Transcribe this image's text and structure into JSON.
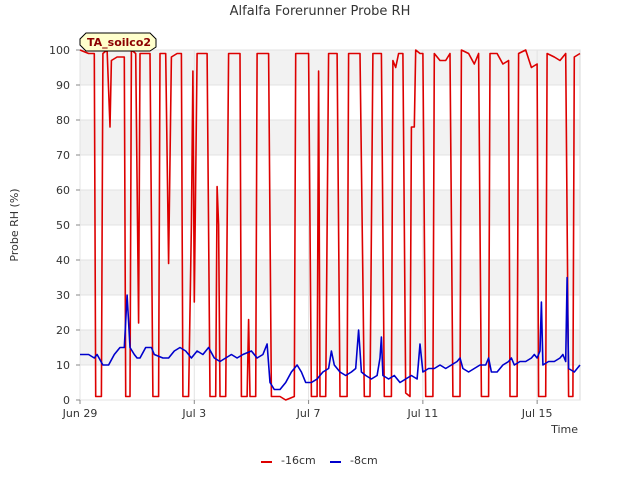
{
  "chart_data": {
    "type": "line",
    "title": "Alfalfa Forerunner Probe RH",
    "xlabel": "Time",
    "ylabel": "Probe RH (%)",
    "site_tag": "TA_soilco2",
    "ylim": [
      0,
      100
    ],
    "xlim": [
      0,
      17.5
    ],
    "y_ticks": [
      0,
      10,
      20,
      30,
      40,
      50,
      60,
      70,
      80,
      90,
      100
    ],
    "x_ticks": [
      {
        "label": "Jun 29",
        "day": 0
      },
      {
        "label": "Jul 3",
        "day": 4
      },
      {
        "label": "Jul 7",
        "day": 8
      },
      {
        "label": "Jul 11",
        "day": 12
      },
      {
        "label": "Jul 15",
        "day": 16
      }
    ],
    "series": [
      {
        "name": "-16cm",
        "color": "#dd0000",
        "points": [
          [
            0,
            100
          ],
          [
            0.3,
            99
          ],
          [
            0.5,
            99
          ],
          [
            0.55,
            1
          ],
          [
            0.75,
            1
          ],
          [
            0.8,
            99
          ],
          [
            0.95,
            100
          ],
          [
            1.05,
            78
          ],
          [
            1.1,
            97
          ],
          [
            1.3,
            98
          ],
          [
            1.55,
            98
          ],
          [
            1.6,
            1
          ],
          [
            1.75,
            1
          ],
          [
            1.8,
            100
          ],
          [
            1.95,
            99
          ],
          [
            2.05,
            22
          ],
          [
            2.1,
            99
          ],
          [
            2.3,
            99
          ],
          [
            2.45,
            99
          ],
          [
            2.55,
            1
          ],
          [
            2.75,
            1
          ],
          [
            2.8,
            99
          ],
          [
            3.0,
            99
          ],
          [
            3.1,
            39
          ],
          [
            3.2,
            98
          ],
          [
            3.4,
            99
          ],
          [
            3.55,
            99
          ],
          [
            3.6,
            1
          ],
          [
            3.8,
            1
          ],
          [
            3.9,
            50
          ],
          [
            3.95,
            94
          ],
          [
            4.0,
            28
          ],
          [
            4.1,
            99
          ],
          [
            4.3,
            99
          ],
          [
            4.45,
            99
          ],
          [
            4.55,
            1
          ],
          [
            4.75,
            1
          ],
          [
            4.8,
            61
          ],
          [
            4.85,
            50
          ],
          [
            4.9,
            1
          ],
          [
            5.1,
            1
          ],
          [
            5.2,
            99
          ],
          [
            5.4,
            99
          ],
          [
            5.6,
            99
          ],
          [
            5.65,
            1
          ],
          [
            5.85,
            1
          ],
          [
            5.9,
            23
          ],
          [
            5.95,
            1
          ],
          [
            6.15,
            1
          ],
          [
            6.2,
            99
          ],
          [
            6.4,
            99
          ],
          [
            6.6,
            99
          ],
          [
            6.7,
            1
          ],
          [
            7.0,
            1
          ],
          [
            7.2,
            0
          ],
          [
            7.5,
            1
          ],
          [
            7.55,
            99
          ],
          [
            7.8,
            99
          ],
          [
            8.0,
            99
          ],
          [
            8.1,
            1
          ],
          [
            8.3,
            1
          ],
          [
            8.35,
            94
          ],
          [
            8.4,
            1
          ],
          [
            8.6,
            1
          ],
          [
            8.7,
            99
          ],
          [
            8.9,
            99
          ],
          [
            9.0,
            99
          ],
          [
            9.1,
            1
          ],
          [
            9.35,
            1
          ],
          [
            9.4,
            99
          ],
          [
            9.6,
            99
          ],
          [
            9.8,
            99
          ],
          [
            9.9,
            34
          ],
          [
            9.95,
            1
          ],
          [
            10.15,
            1
          ],
          [
            10.25,
            99
          ],
          [
            10.4,
            99
          ],
          [
            10.55,
            99
          ],
          [
            10.65,
            1
          ],
          [
            10.9,
            1
          ],
          [
            10.95,
            97
          ],
          [
            11.05,
            95
          ],
          [
            11.15,
            99
          ],
          [
            11.3,
            99
          ],
          [
            11.4,
            2
          ],
          [
            11.55,
            1
          ],
          [
            11.6,
            78
          ],
          [
            11.7,
            78
          ],
          [
            11.75,
            100
          ],
          [
            11.9,
            99
          ],
          [
            12.0,
            99
          ],
          [
            12.1,
            1
          ],
          [
            12.35,
            1
          ],
          [
            12.4,
            99
          ],
          [
            12.6,
            97
          ],
          [
            12.8,
            97
          ],
          [
            12.95,
            99
          ],
          [
            13.05,
            1
          ],
          [
            13.3,
            1
          ],
          [
            13.35,
            100
          ],
          [
            13.6,
            99
          ],
          [
            13.8,
            96
          ],
          [
            13.95,
            99
          ],
          [
            14.05,
            1
          ],
          [
            14.3,
            1
          ],
          [
            14.35,
            99
          ],
          [
            14.6,
            99
          ],
          [
            14.8,
            96
          ],
          [
            15.0,
            97
          ],
          [
            15.05,
            1
          ],
          [
            15.3,
            1
          ],
          [
            15.35,
            99
          ],
          [
            15.6,
            100
          ],
          [
            15.8,
            95
          ],
          [
            16.0,
            96
          ],
          [
            16.05,
            1
          ],
          [
            16.3,
            1
          ],
          [
            16.35,
            99
          ],
          [
            16.6,
            98
          ],
          [
            16.8,
            97
          ],
          [
            17.0,
            99
          ],
          [
            17.1,
            1
          ],
          [
            17.25,
            1
          ],
          [
            17.3,
            98
          ],
          [
            17.5,
            99
          ]
        ]
      },
      {
        "name": "-8cm",
        "color": "#0000cc",
        "points": [
          [
            0,
            13
          ],
          [
            0.3,
            13
          ],
          [
            0.5,
            12
          ],
          [
            0.6,
            13
          ],
          [
            0.8,
            10
          ],
          [
            1.0,
            10
          ],
          [
            1.2,
            13
          ],
          [
            1.4,
            15
          ],
          [
            1.55,
            15
          ],
          [
            1.65,
            30
          ],
          [
            1.75,
            15
          ],
          [
            1.9,
            13
          ],
          [
            2.0,
            12
          ],
          [
            2.1,
            12
          ],
          [
            2.3,
            15
          ],
          [
            2.5,
            15
          ],
          [
            2.6,
            13
          ],
          [
            2.9,
            12
          ],
          [
            3.1,
            12
          ],
          [
            3.3,
            14
          ],
          [
            3.5,
            15
          ],
          [
            3.7,
            14
          ],
          [
            3.9,
            12
          ],
          [
            4.1,
            14
          ],
          [
            4.3,
            13
          ],
          [
            4.5,
            15
          ],
          [
            4.7,
            12
          ],
          [
            4.9,
            11
          ],
          [
            5.1,
            12
          ],
          [
            5.3,
            13
          ],
          [
            5.5,
            12
          ],
          [
            5.7,
            13
          ],
          [
            6.0,
            14
          ],
          [
            6.2,
            12
          ],
          [
            6.4,
            13
          ],
          [
            6.55,
            16
          ],
          [
            6.65,
            5
          ],
          [
            6.8,
            3
          ],
          [
            7.0,
            3
          ],
          [
            7.2,
            5
          ],
          [
            7.4,
            8
          ],
          [
            7.6,
            10
          ],
          [
            7.75,
            8
          ],
          [
            7.9,
            5
          ],
          [
            8.1,
            5
          ],
          [
            8.3,
            6
          ],
          [
            8.5,
            8
          ],
          [
            8.7,
            9
          ],
          [
            8.8,
            14
          ],
          [
            8.9,
            10
          ],
          [
            9.1,
            8
          ],
          [
            9.3,
            7
          ],
          [
            9.5,
            8
          ],
          [
            9.65,
            9
          ],
          [
            9.75,
            20
          ],
          [
            9.85,
            8
          ],
          [
            10.0,
            7
          ],
          [
            10.2,
            6
          ],
          [
            10.4,
            7
          ],
          [
            10.5,
            12
          ],
          [
            10.55,
            18
          ],
          [
            10.6,
            7
          ],
          [
            10.8,
            6
          ],
          [
            11.0,
            7
          ],
          [
            11.2,
            5
          ],
          [
            11.4,
            6
          ],
          [
            11.6,
            7
          ],
          [
            11.8,
            6
          ],
          [
            11.9,
            16
          ],
          [
            12.0,
            8
          ],
          [
            12.2,
            9
          ],
          [
            12.4,
            9
          ],
          [
            12.6,
            10
          ],
          [
            12.8,
            9
          ],
          [
            13.0,
            10
          ],
          [
            13.2,
            11
          ],
          [
            13.3,
            12
          ],
          [
            13.4,
            9
          ],
          [
            13.6,
            8
          ],
          [
            13.8,
            9
          ],
          [
            14.0,
            10
          ],
          [
            14.2,
            10
          ],
          [
            14.3,
            12
          ],
          [
            14.4,
            8
          ],
          [
            14.6,
            8
          ],
          [
            14.8,
            10
          ],
          [
            15.0,
            11
          ],
          [
            15.1,
            12
          ],
          [
            15.2,
            10
          ],
          [
            15.4,
            11
          ],
          [
            15.6,
            11
          ],
          [
            15.8,
            12
          ],
          [
            15.9,
            13
          ],
          [
            16.0,
            12
          ],
          [
            16.1,
            14
          ],
          [
            16.15,
            28
          ],
          [
            16.2,
            10
          ],
          [
            16.4,
            11
          ],
          [
            16.6,
            11
          ],
          [
            16.8,
            12
          ],
          [
            16.9,
            13
          ],
          [
            17.0,
            11
          ],
          [
            17.05,
            35
          ],
          [
            17.1,
            9
          ],
          [
            17.3,
            8
          ],
          [
            17.5,
            10
          ]
        ]
      }
    ]
  }
}
